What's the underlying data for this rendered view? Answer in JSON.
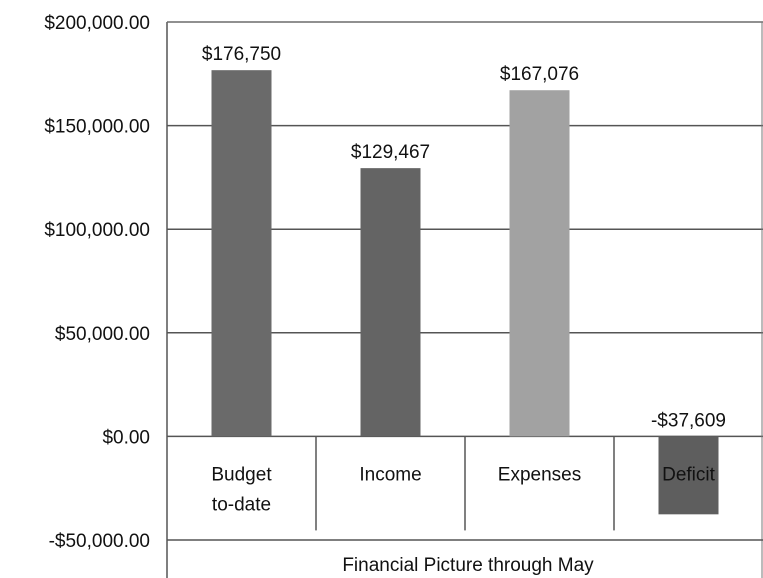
{
  "chart_data": {
    "type": "bar",
    "title": "",
    "xlabel": "Financial Picture through May",
    "ylabel": "",
    "ylim": [
      -50000,
      200000
    ],
    "yticks": [
      200000,
      150000,
      100000,
      50000,
      0,
      -50000
    ],
    "ytick_labels": [
      "$200,000.00",
      "$150,000.00",
      "$100,000.00",
      "$50,000.00",
      "$0.00",
      "-$50,000.00"
    ],
    "grid": true,
    "legend": "none",
    "categories": [
      {
        "lines": [
          "Budget",
          "to-date"
        ]
      },
      {
        "lines": [
          "Income"
        ]
      },
      {
        "lines": [
          "Expenses"
        ]
      },
      {
        "lines": [
          "Deficit"
        ]
      }
    ],
    "values": [
      176750,
      129467,
      167076,
      -37609
    ],
    "data_labels": [
      "$176,750",
      "$129,467",
      "$167,076",
      "-$37,609"
    ],
    "colors": [
      "#6a6a6a",
      "#646464",
      "#a2a2a2",
      "#5e5e5e"
    ]
  }
}
